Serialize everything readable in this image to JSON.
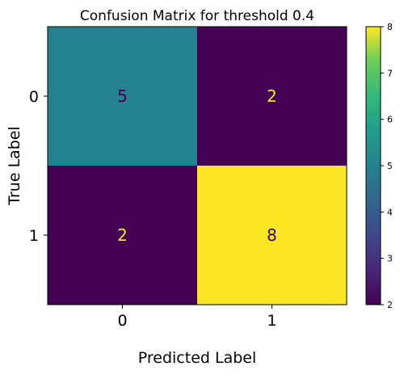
{
  "chart_data": {
    "type": "heatmap",
    "title": "Confusion Matrix for threshold 0.4",
    "xlabel": "Predicted Label",
    "ylabel": "True Label",
    "x_categories": [
      "0",
      "1"
    ],
    "y_categories": [
      "0",
      "1"
    ],
    "matrix": [
      [
        5,
        2
      ],
      [
        2,
        8
      ]
    ],
    "colormap": "viridis",
    "color_range": [
      2,
      8
    ],
    "colorbar_ticks": [
      "2",
      "3",
      "4",
      "5",
      "6",
      "7",
      "8"
    ],
    "colorbar_tick_values": [
      2,
      3,
      4,
      5,
      6,
      7,
      8
    ],
    "low_color": "#440154",
    "mid_color": "#21918c",
    "high_color": "#fde725",
    "dark_text_color": "#440154",
    "light_text_color": "#fde725"
  }
}
